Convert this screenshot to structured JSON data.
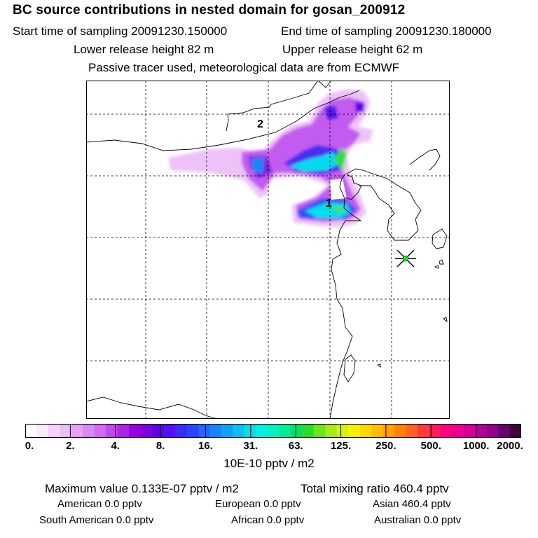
{
  "header": {
    "title": "BC  source contributions in nested domain for gosan_200912",
    "start_label": "Start time of sampling 20091230.150000",
    "end_label": "End time of sampling 20091230.180000",
    "lower_label": "Lower release height   82 m",
    "upper_label": "Upper release height   62 m",
    "note": "Passive tracer used, meteorological data are from ECMWF"
  },
  "chart_data": {
    "type": "heatmap",
    "title": "BC  source contributions in nested domain for gosan_200912",
    "map_labels": [
      "1",
      "2"
    ],
    "station": "Gosan (marked with star)",
    "grid": true,
    "colorbar": {
      "tick_labels": [
        "0.",
        "2.",
        "4.",
        "8.",
        "16.",
        "31.",
        "63.",
        "125.",
        "250.",
        "500.",
        "1000.",
        "2000."
      ],
      "unit": "10E-10 pptv / m2",
      "colors": [
        "#ffffff",
        "#fbe9fd",
        "#f5d2fb",
        "#eebcf9",
        "#e6a3f5",
        "#dc88f2",
        "#d06cef",
        "#bf4ae9",
        "#ad24e2",
        "#9a00e0",
        "#7c00de",
        "#6400e6",
        "#4f14f2",
        "#3c2cf8",
        "#2d44fb",
        "#1f66fb",
        "#1486f8",
        "#0ca4f4",
        "#08c1f0",
        "#05dcea",
        "#00f2e4",
        "#00f2c0",
        "#00ec96",
        "#00e06a",
        "#2cdc2c",
        "#6ee41a",
        "#a6ec12",
        "#d6f20c",
        "#f8f000",
        "#ffd800",
        "#ffbe00",
        "#ffa000",
        "#ff8200",
        "#ff6420",
        "#ff3c3c",
        "#ff1c5c",
        "#ff0080",
        "#ec0090",
        "#d40098",
        "#b4009a",
        "#94008c",
        "#6a006c",
        "#40003c"
      ]
    }
  },
  "stats": {
    "max_label": "Maximum value  0.133E-07 pptv / m2",
    "total_label": "Total mixing ratio       460.4 pptv"
  },
  "regions": {
    "american": "American          0.0 pptv",
    "european": "European          0.0 pptv",
    "asian": "Asian      460.4 pptv",
    "south_american": "South American          0.0 pptv",
    "african": "African          0.0 pptv",
    "australian": "Australian          0.0 pptv"
  }
}
